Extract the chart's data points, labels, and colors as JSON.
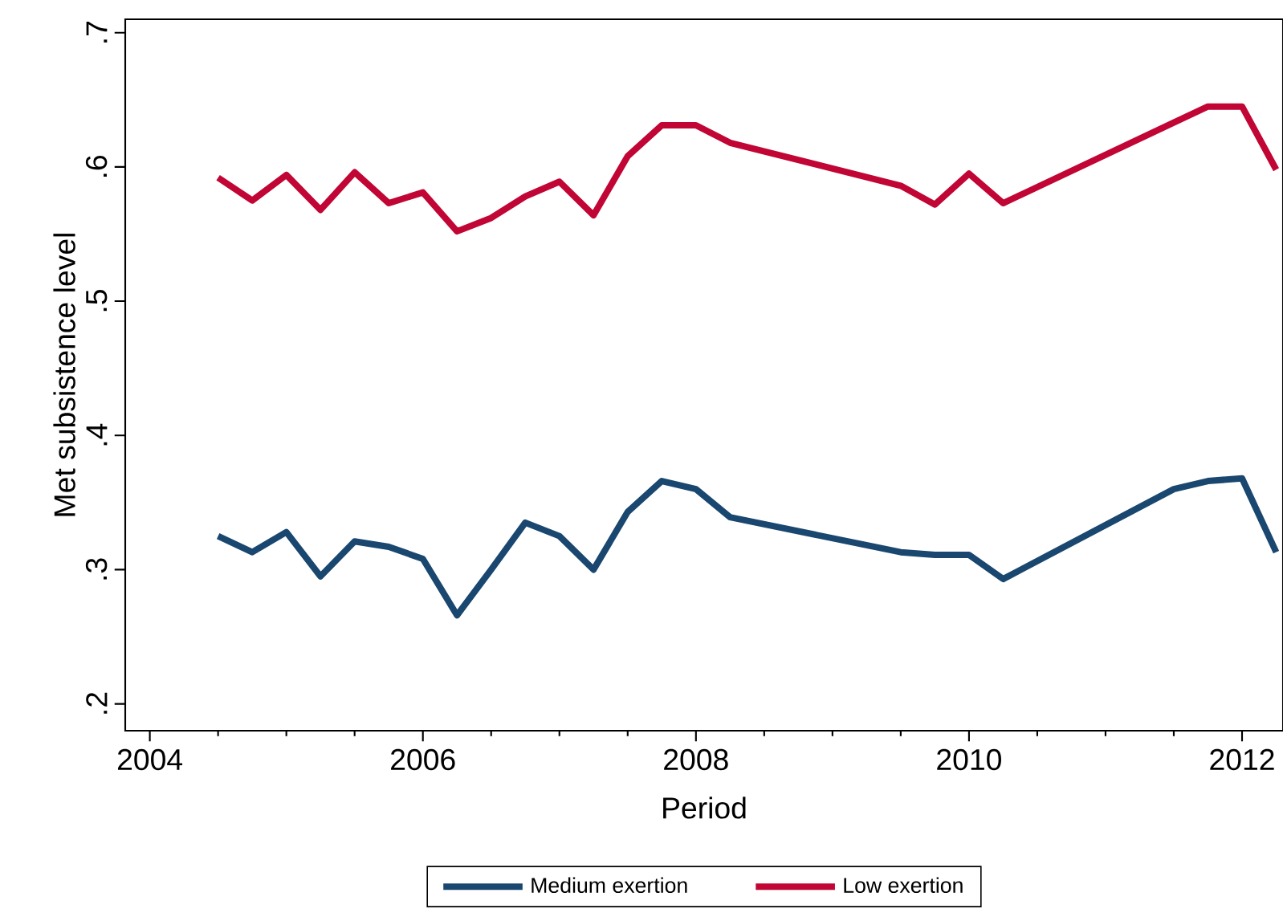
{
  "chart_data": {
    "type": "line",
    "xlabel": "Period",
    "ylabel": "Met subsistence level",
    "x": [
      2004.5,
      2004.75,
      2005.0,
      2005.25,
      2005.5,
      2005.75,
      2006.0,
      2006.25,
      2006.5,
      2006.75,
      2007.0,
      2007.25,
      2007.5,
      2007.75,
      2008.0,
      2008.25,
      2009.5,
      2009.75,
      2010.0,
      2010.25,
      2011.5,
      2011.75,
      2012.0,
      2012.25
    ],
    "series": [
      {
        "name": "Medium exertion",
        "color": "#1a476f",
        "values": [
          0.325,
          0.313,
          0.328,
          0.295,
          0.321,
          0.317,
          0.308,
          0.266,
          0.3,
          0.335,
          0.325,
          0.3,
          0.343,
          0.366,
          0.36,
          0.339,
          0.313,
          0.311,
          0.311,
          0.293,
          0.36,
          0.366,
          0.368,
          0.313
        ]
      },
      {
        "name": "Low exertion",
        "color": "#c10534",
        "values": [
          0.592,
          0.575,
          0.594,
          0.568,
          0.596,
          0.573,
          0.581,
          0.552,
          0.562,
          0.578,
          0.589,
          0.564,
          0.608,
          0.631,
          0.631,
          0.618,
          0.586,
          0.572,
          0.595,
          0.573,
          0.633,
          0.645,
          0.645,
          0.598
        ]
      }
    ],
    "xlim": [
      2003.82,
      2012.3
    ],
    "xticks": [
      2004,
      {
        "value": 2004.5,
        "label": null
      },
      {
        "value": 2005,
        "label": null
      },
      {
        "value": 2005.5,
        "label": null
      },
      2006,
      {
        "value": 2006.5,
        "label": null
      },
      {
        "value": 2007,
        "label": null
      },
      {
        "value": 2007.5,
        "label": null
      },
      2008,
      {
        "value": 2008.5,
        "label": null
      },
      {
        "value": 2009,
        "label": null
      },
      {
        "value": 2009.5,
        "label": null
      },
      2010,
      {
        "value": 2010.5,
        "label": null
      },
      {
        "value": 2011,
        "label": null
      },
      {
        "value": 2011.5,
        "label": null
      },
      2012
    ],
    "ylim": [
      0.18,
      0.71
    ],
    "yticks": [
      {
        "value": 0.2,
        "label": ".2"
      },
      {
        "value": 0.3,
        "label": ".3"
      },
      {
        "value": 0.4,
        "label": ".4"
      },
      {
        "value": 0.5,
        "label": ".5"
      },
      {
        "value": 0.6,
        "label": ".6"
      },
      {
        "value": 0.7,
        "label": ".7"
      }
    ],
    "grid": false,
    "legend": "bottom",
    "marker": "none",
    "line_style": "solid"
  }
}
